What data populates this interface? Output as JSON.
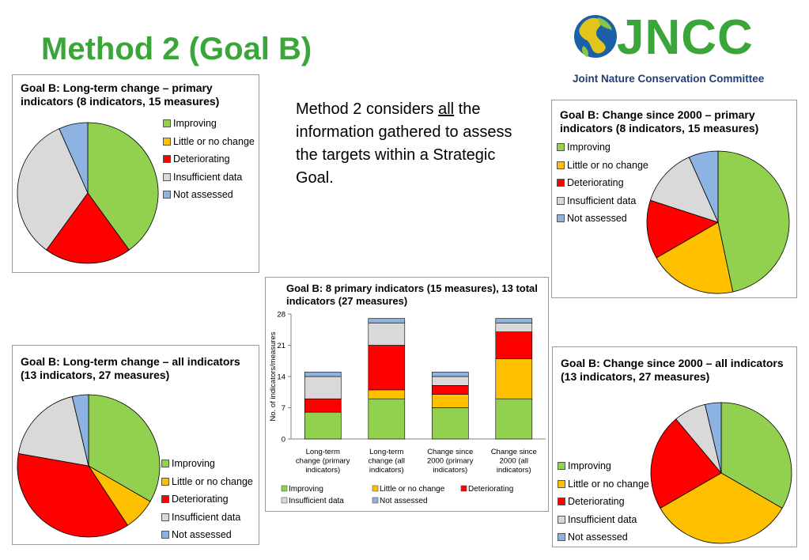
{
  "slide": {
    "title": "Method 2 (Goal B)",
    "description": {
      "before": "Method 2 considers ",
      "emph": "all",
      "after": " the information gathered to assess the targets within a Strategic Goal."
    }
  },
  "logo": {
    "name": "JNCC",
    "subtitle": "Joint Nature Conservation Committee"
  },
  "colors": {
    "improving": "#92d050",
    "little_change": "#ffc000",
    "deteriorating": "#ff0000",
    "insufficient": "#d9d9d9",
    "not_assessed": "#8db3e2"
  },
  "chart_data": [
    {
      "type": "pie",
      "title": "Goal B: Long-term change – primary indicators (8 indicators, 15 measures)",
      "labels": [
        "Improving",
        "Little or no change",
        "Deteriorating",
        "Insufficient data",
        "Not assessed"
      ],
      "values": [
        6,
        0,
        3,
        5,
        1
      ],
      "legend": "right"
    },
    {
      "type": "pie",
      "title": "Goal B: Long-term change – all indicators (13 indicators, 27 measures)",
      "labels": [
        "Improving",
        "Little or no change",
        "Deteriorating",
        "Insufficient data",
        "Not assessed"
      ],
      "values": [
        9,
        2,
        10,
        5,
        1
      ],
      "legend": "right"
    },
    {
      "type": "pie",
      "title": "Goal B: Change since 2000 – primary indicators (8 indicators, 15 measures)",
      "labels": [
        "Improving",
        "Little or no change",
        "Deteriorating",
        "Insufficient data",
        "Not assessed"
      ],
      "values": [
        7,
        3,
        2,
        2,
        1
      ],
      "legend": "left"
    },
    {
      "type": "pie",
      "title": "Goal B: Change since 2000 – all indicators (13 indicators, 27 measures)",
      "labels": [
        "Improving",
        "Little or no change",
        "Deteriorating",
        "Insufficient data",
        "Not assessed"
      ],
      "values": [
        9,
        9,
        6,
        2,
        1
      ],
      "legend": "left"
    },
    {
      "type": "bar",
      "stacked": true,
      "title": "Goal B: 8 primary indicators (15 measures), 13 total indicators (27 measures)",
      "ylabel": "No. of indicators/measures",
      "ylim": [
        0,
        28
      ],
      "yticks": [
        0,
        7,
        14,
        21,
        28
      ],
      "categories": [
        [
          "Long-term",
          "change (primary",
          "indicators)"
        ],
        [
          "Long-term",
          "change (all",
          "indicators)"
        ],
        [
          "Change since",
          "2000 (primary",
          "indicators)"
        ],
        [
          "Change since",
          "2000 (all",
          "indicators)"
        ]
      ],
      "series": [
        {
          "name": "Improving",
          "values": [
            6,
            9,
            7,
            9
          ]
        },
        {
          "name": "Little or no change",
          "values": [
            0,
            2,
            3,
            9
          ]
        },
        {
          "name": "Deteriorating",
          "values": [
            3,
            10,
            2,
            6
          ]
        },
        {
          "name": "Insufficient data",
          "values": [
            5,
            5,
            2,
            2
          ]
        },
        {
          "name": "Not assessed",
          "values": [
            1,
            1,
            1,
            1
          ]
        }
      ],
      "legend": "bottom"
    }
  ]
}
